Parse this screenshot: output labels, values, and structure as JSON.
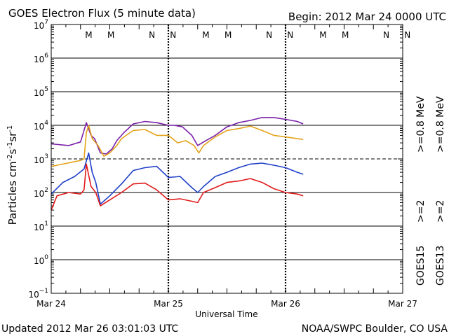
{
  "header": {
    "title": "GOES Electron Flux (5 minute data)",
    "begin": "Begin: 2012 Mar 24 0000 UTC"
  },
  "footer": {
    "updated": "Updated 2012 Mar 26 03:01:03 UTC",
    "credit": "NOAA/SWPC Boulder, CO USA"
  },
  "colors": {
    "goes15_hi": "#7a1fa8",
    "goes13_hi": "#e3a21a",
    "goes15_lo": "#1f3fc8",
    "goes13_lo": "#e01b1b",
    "marker_M": "#e01b1b",
    "marker_N": "#1f3fc8"
  },
  "legend": {
    "goes15": {
      "label": "GOES15",
      "hi": ">=0.8 MeV",
      "lo": ">=2"
    },
    "goes13": {
      "label": "GOES13",
      "hi": ">=0.8 MeV",
      "lo": ">=2"
    }
  },
  "markers": [
    {
      "label": "M",
      "day": 0.32,
      "color": "marker_M"
    },
    {
      "label": "M",
      "day": 0.51,
      "color": "marker_N"
    },
    {
      "label": "N",
      "day": 0.86,
      "color": "marker_M"
    },
    {
      "label": "N",
      "day": 1.04,
      "color": "marker_N"
    },
    {
      "label": "M",
      "day": 1.32,
      "color": "marker_M"
    },
    {
      "label": "M",
      "day": 1.51,
      "color": "marker_N"
    },
    {
      "label": "N",
      "day": 1.86,
      "color": "marker_M"
    },
    {
      "label": "N",
      "day": 2.04,
      "color": "marker_N"
    },
    {
      "label": "M",
      "day": 2.32,
      "color": "marker_M"
    },
    {
      "label": "M",
      "day": 2.51,
      "color": "marker_N"
    },
    {
      "label": "N",
      "day": 2.86,
      "color": "marker_M"
    },
    {
      "label": "N",
      "day": 3.04,
      "color": "marker_N"
    }
  ],
  "chart_data": {
    "type": "line",
    "title": "GOES Electron Flux (5 minute data)",
    "xlabel": "Universal Time",
    "ylabel": "Particles cm-2s-1sr-1",
    "ylabel_parts": {
      "base": "Particles cm",
      "e1": "-2",
      "s": "s",
      "e2": "-1",
      "sr": "sr",
      "e3": "-1"
    },
    "yscale": "log",
    "ylim": [
      0.1,
      10000000
    ],
    "xlim": [
      0,
      3
    ],
    "x_ticks": [
      {
        "value": 0,
        "label": "Mar 24"
      },
      {
        "value": 1,
        "label": "Mar 25"
      },
      {
        "value": 2,
        "label": "Mar 26"
      },
      {
        "value": 3,
        "label": "Mar 27"
      }
    ],
    "y_ticks": [
      {
        "exp": -1,
        "base": "10",
        "sup": "−1"
      },
      {
        "exp": 0,
        "base": "10",
        "sup": "0"
      },
      {
        "exp": 1,
        "base": "10",
        "sup": "1"
      },
      {
        "exp": 2,
        "base": "10",
        "sup": "2"
      },
      {
        "exp": 3,
        "base": "10",
        "sup": "3"
      },
      {
        "exp": 4,
        "base": "10",
        "sup": "4"
      },
      {
        "exp": 5,
        "base": "10",
        "sup": "5"
      },
      {
        "exp": 6,
        "base": "10",
        "sup": "6"
      },
      {
        "exp": 7,
        "base": "10",
        "sup": "7"
      }
    ],
    "threshold_dashed": 1000,
    "series": [
      {
        "name": "GOES15 >=0.8 MeV",
        "color": "goes15_hi",
        "x": [
          0,
          0.15,
          0.25,
          0.3,
          0.34,
          0.37,
          0.42,
          0.47,
          0.52,
          0.56,
          0.62,
          0.7,
          0.8,
          0.9,
          1.0,
          1.05,
          1.12,
          1.2,
          1.25,
          1.3,
          1.4,
          1.5,
          1.6,
          1.7,
          1.8,
          1.9,
          2.0,
          2.1,
          2.15
        ],
        "y": [
          2800,
          2500,
          3200,
          12000,
          5000,
          4000,
          1500,
          1400,
          2000,
          3500,
          6000,
          11000,
          13000,
          12000,
          10000,
          10000,
          9000,
          5000,
          2500,
          3200,
          5000,
          9000,
          12000,
          14000,
          17000,
          17000,
          15000,
          13000,
          11000
        ]
      },
      {
        "name": "GOES13 >=0.8 MeV",
        "color": "goes13_hi",
        "x": [
          0,
          0.1,
          0.25,
          0.28,
          0.3,
          0.32,
          0.35,
          0.4,
          0.45,
          0.5,
          0.56,
          0.6,
          0.7,
          0.8,
          0.9,
          1.0,
          1.08,
          1.15,
          1.22,
          1.26,
          1.3,
          1.4,
          1.5,
          1.6,
          1.7,
          1.8,
          1.9,
          2.0,
          2.1,
          2.15
        ],
        "y": [
          600,
          700,
          900,
          1000,
          6000,
          10000,
          4000,
          2500,
          1200,
          1500,
          2500,
          4000,
          7000,
          7500,
          5000,
          5000,
          3000,
          3500,
          2500,
          1500,
          2500,
          4500,
          7000,
          8000,
          9500,
          7000,
          5000,
          4500,
          4000,
          3800
        ]
      },
      {
        "name": "GOES15 >=2",
        "color": "goes15_lo",
        "x": [
          0,
          0.1,
          0.2,
          0.28,
          0.32,
          0.35,
          0.38,
          0.42,
          0.5,
          0.6,
          0.7,
          0.8,
          0.9,
          1.0,
          1.1,
          1.2,
          1.25,
          1.3,
          1.4,
          1.5,
          1.6,
          1.7,
          1.8,
          1.9,
          2.0,
          2.1,
          2.15
        ],
        "y": [
          90,
          200,
          300,
          500,
          1500,
          400,
          200,
          45,
          80,
          180,
          450,
          550,
          600,
          280,
          300,
          140,
          100,
          150,
          300,
          400,
          550,
          700,
          750,
          650,
          550,
          400,
          350
        ]
      },
      {
        "name": "GOES13 >=2",
        "color": "goes13_lo",
        "x": [
          0,
          0.05,
          0.15,
          0.25,
          0.28,
          0.3,
          0.34,
          0.38,
          0.42,
          0.5,
          0.6,
          0.7,
          0.8,
          0.9,
          1.0,
          1.1,
          1.2,
          1.25,
          1.3,
          1.4,
          1.5,
          1.6,
          1.7,
          1.8,
          1.9,
          2.0,
          2.1,
          2.15
        ],
        "y": [
          30,
          80,
          100,
          90,
          120,
          700,
          150,
          100,
          40,
          60,
          100,
          180,
          190,
          120,
          60,
          65,
          55,
          50,
          100,
          140,
          200,
          220,
          260,
          200,
          130,
          100,
          90,
          80
        ]
      }
    ]
  }
}
